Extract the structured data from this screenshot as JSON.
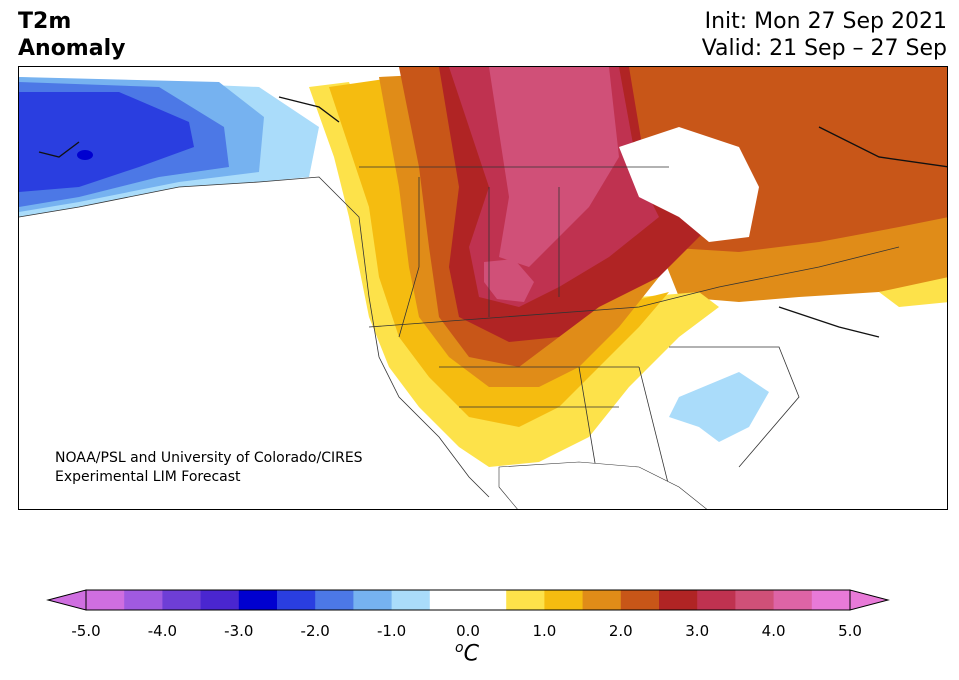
{
  "header": {
    "variable_line1": "T2m",
    "variable_line2": "Anomaly",
    "init": "Init: Mon 27 Sep 2021",
    "valid": "Valid: 21 Sep – 27 Sep"
  },
  "credit": {
    "line1": "NOAA/PSL and University of Colorado/CIRES",
    "line2": "Experimental LIM Forecast"
  },
  "colorbar": {
    "ticks": [
      "-5.0",
      "-4.0",
      "-3.0",
      "-2.0",
      "-1.0",
      "0.0",
      "1.0",
      "2.0",
      "3.0",
      "4.0",
      "5.0"
    ],
    "unit_base": "C",
    "unit_sup": "o",
    "colors": [
      "#cf6ee0",
      "#a05ae0",
      "#6e3ed6",
      "#4a26d0",
      "#0000d0",
      "#2a3ee0",
      "#4c78e6",
      "#76b2f0",
      "#aadcfa",
      "#ffffff",
      "#ffffff",
      "#fde24a",
      "#f5bc10",
      "#e08c18",
      "#c85618",
      "#b02424",
      "#bf3250",
      "#d05078",
      "#de64a6",
      "#e87ad8"
    ],
    "extend_low": "#cf6ee0",
    "extend_high": "#e87ad8"
  }
}
